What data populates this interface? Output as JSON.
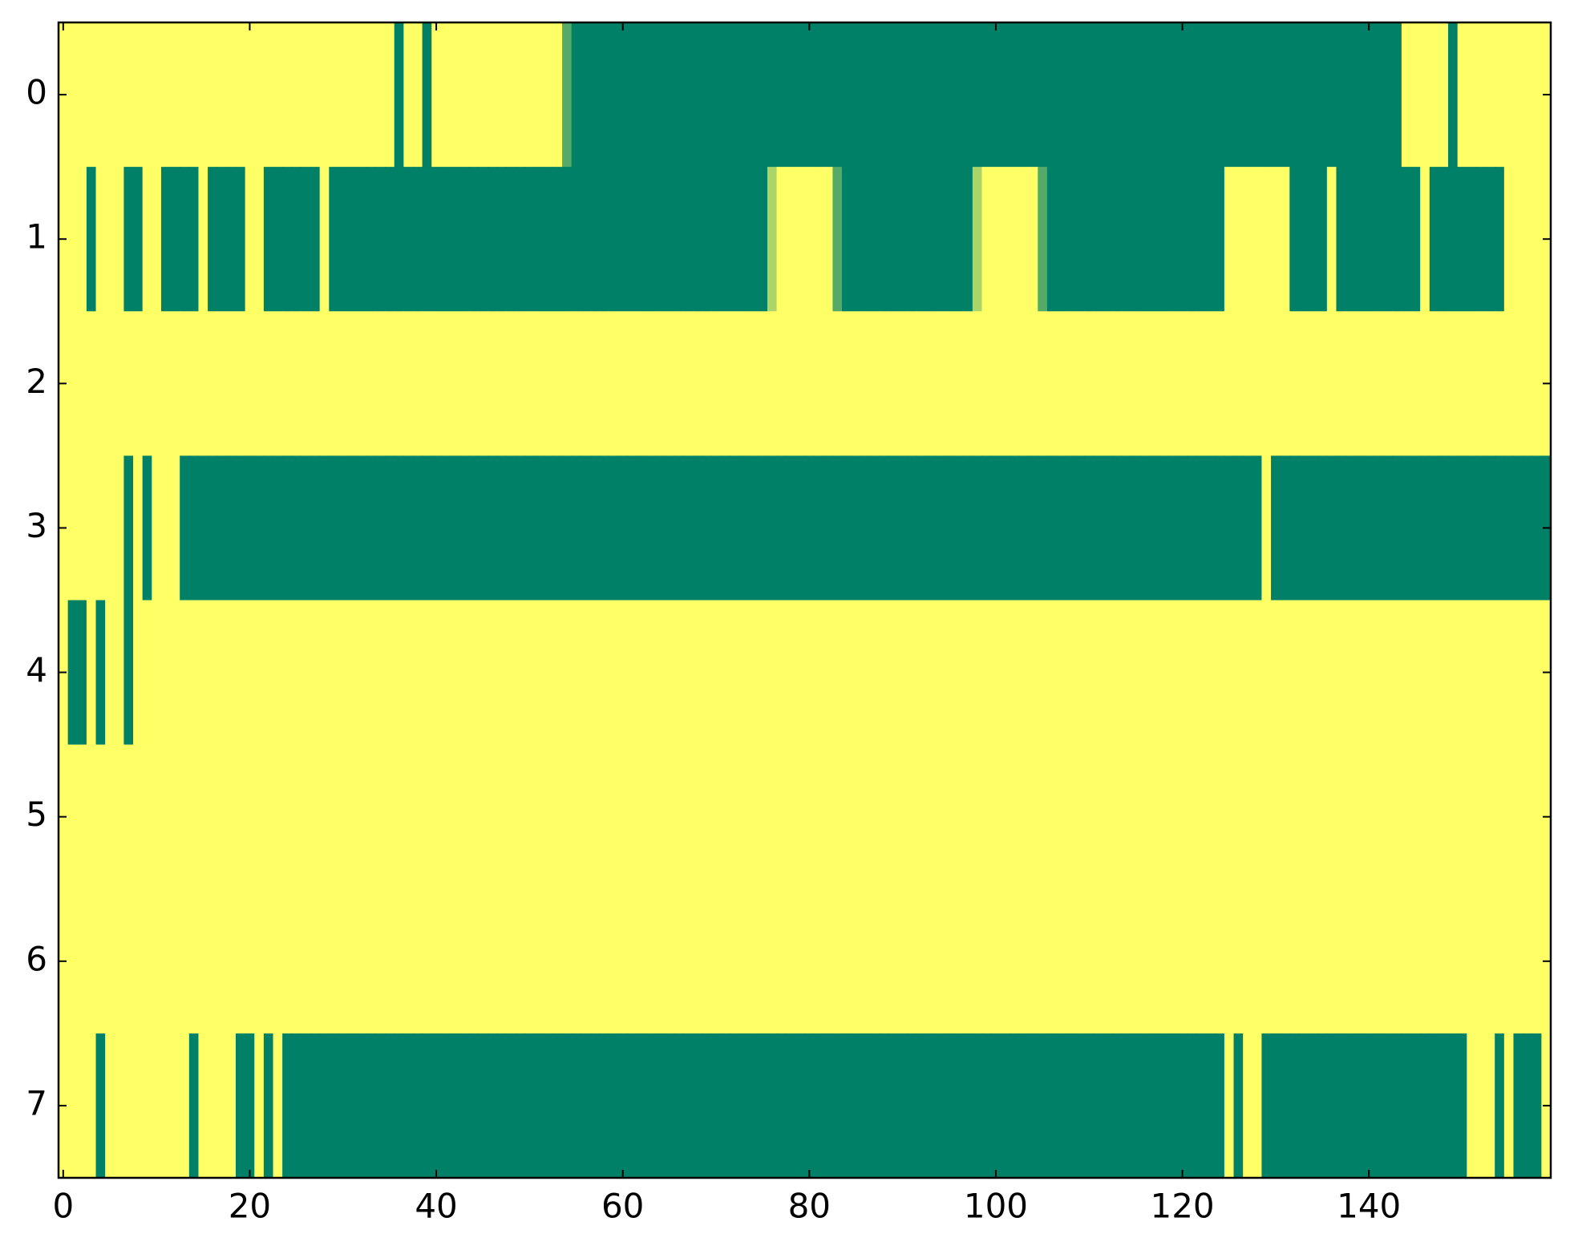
{
  "chart_data": {
    "type": "heatmap",
    "colormap": [
      "#008066",
      "#ffff66"
    ],
    "xlim": [
      -0.5,
      159.5
    ],
    "ylim": [
      7.5,
      -0.5
    ],
    "xticks": [
      0,
      20,
      40,
      60,
      80,
      100,
      120,
      140
    ],
    "yticks": [
      0,
      1,
      2,
      3,
      4,
      5,
      6,
      7
    ],
    "z": [
      [
        1,
        1,
        1,
        1,
        1,
        1,
        1,
        1,
        1,
        1,
        1,
        1,
        1,
        1,
        1,
        1,
        1,
        1,
        1,
        1,
        1,
        1,
        1,
        1,
        1,
        1,
        1,
        1,
        1,
        1,
        1,
        1,
        1,
        1,
        1,
        1,
        0,
        1,
        1,
        0,
        1,
        1,
        1,
        1,
        1,
        1,
        1,
        1,
        1,
        1,
        1,
        1,
        1,
        1,
        0.33,
        0,
        0,
        0,
        0,
        0,
        0,
        0,
        0,
        0,
        0,
        0,
        0,
        0,
        0,
        0,
        0,
        0,
        0,
        0,
        0,
        0,
        0,
        0,
        0,
        0,
        0,
        0,
        0,
        0,
        0,
        0,
        0,
        0,
        0,
        0,
        0,
        0,
        0,
        0,
        0,
        0,
        0,
        0,
        0,
        0,
        0,
        0,
        0,
        0,
        0,
        0,
        0,
        0,
        0,
        0,
        0,
        0,
        0,
        0,
        0,
        0,
        0,
        0,
        0,
        0,
        0,
        0,
        0,
        0,
        0,
        0,
        0,
        0,
        0,
        0,
        0,
        0,
        0,
        0,
        0,
        0,
        0,
        0,
        0,
        0,
        0,
        0,
        0,
        0,
        1,
        1,
        1,
        1,
        1,
        0,
        1,
        1,
        1,
        1,
        1,
        1,
        1,
        1,
        1,
        1
      ],
      [
        1,
        1,
        1,
        0,
        1,
        1,
        1,
        0,
        0,
        1,
        1,
        0,
        0,
        0,
        0,
        1,
        0,
        0,
        0,
        0,
        1,
        1,
        0,
        0,
        0,
        0,
        0,
        0,
        1,
        0,
        0,
        0,
        0,
        0,
        0,
        0,
        0,
        0,
        0,
        0,
        0,
        0,
        0,
        0,
        0,
        0,
        0,
        0,
        0,
        0,
        0,
        0,
        0,
        0,
        0,
        0,
        0,
        0,
        0,
        0,
        0,
        0,
        0,
        0,
        0,
        0,
        0,
        0,
        0,
        0,
        0,
        0,
        0,
        0,
        0,
        0,
        0.67,
        1,
        1,
        1,
        1,
        1,
        1,
        0.33,
        0,
        0,
        0,
        0,
        0,
        0,
        0,
        0,
        0,
        0,
        0,
        0,
        0,
        0,
        0.67,
        1,
        1,
        1,
        1,
        1,
        1,
        0.33,
        0,
        0,
        0,
        0,
        0,
        0,
        0,
        0,
        0,
        0,
        0,
        0,
        0,
        0,
        0,
        0,
        0,
        0,
        0,
        1,
        1,
        1,
        1,
        1,
        1,
        1,
        0,
        0,
        0,
        0,
        1,
        0,
        0,
        0,
        0,
        0,
        0,
        0,
        0,
        0,
        1,
        0,
        0,
        0,
        0,
        0,
        0,
        0,
        0,
        1,
        1,
        1,
        1,
        1
      ],
      [
        1,
        1,
        1,
        1,
        1,
        1,
        1,
        1,
        1,
        1,
        1,
        1,
        1,
        1,
        1,
        1,
        1,
        1,
        1,
        1,
        1,
        1,
        1,
        1,
        1,
        1,
        1,
        1,
        1,
        1,
        1,
        1,
        1,
        1,
        1,
        1,
        1,
        1,
        1,
        1,
        1,
        1,
        1,
        1,
        1,
        1,
        1,
        1,
        1,
        1,
        1,
        1,
        1,
        1,
        1,
        1,
        1,
        1,
        1,
        1,
        1,
        1,
        1,
        1,
        1,
        1,
        1,
        1,
        1,
        1,
        1,
        1,
        1,
        1,
        1,
        1,
        1,
        1,
        1,
        1,
        1,
        1,
        1,
        1,
        1,
        1,
        1,
        1,
        1,
        1,
        1,
        1,
        1,
        1,
        1,
        1,
        1,
        1,
        1,
        1,
        1,
        1,
        1,
        1,
        1,
        1,
        1,
        1,
        1,
        1,
        1,
        1,
        1,
        1,
        1,
        1,
        1,
        1,
        1,
        1,
        1,
        1,
        1,
        1,
        1,
        1,
        1,
        1,
        1,
        1,
        1,
        1,
        1,
        1,
        1,
        1,
        1,
        1,
        1,
        1,
        1,
        1,
        1,
        1,
        1,
        1,
        1,
        1,
        1,
        1,
        1,
        1,
        1,
        1,
        1,
        1,
        1,
        1,
        1,
        1
      ],
      [
        1,
        1,
        1,
        1,
        1,
        1,
        1,
        0,
        1,
        0,
        1,
        1,
        1,
        0,
        0,
        0,
        0,
        0,
        0,
        0,
        0,
        0,
        0,
        0,
        0,
        0,
        0,
        0,
        0,
        0,
        0,
        0,
        0,
        0,
        0,
        0,
        0,
        0,
        0,
        0,
        0,
        0,
        0,
        0,
        0,
        0,
        0,
        0,
        0,
        0,
        0,
        0,
        0,
        0,
        0,
        0,
        0,
        0,
        0,
        0,
        0,
        0,
        0,
        0,
        0,
        0,
        0,
        0,
        0,
        0,
        0,
        0,
        0,
        0,
        0,
        0,
        0,
        0,
        0,
        0,
        0,
        0,
        0,
        0,
        0,
        0,
        0,
        0,
        0,
        0,
        0,
        0,
        0,
        0,
        0,
        0,
        0,
        0,
        0,
        0,
        0,
        0,
        0,
        0,
        0,
        0,
        0,
        0,
        0,
        0,
        0,
        0,
        0,
        0,
        0,
        0,
        0,
        0,
        0,
        0,
        0,
        0,
        0,
        0,
        0,
        0,
        0,
        0,
        0,
        1,
        0,
        0,
        0,
        0,
        0,
        0,
        0,
        0,
        0,
        0,
        0,
        0,
        0,
        0,
        0,
        0,
        0,
        0,
        0,
        0,
        0,
        0,
        0,
        0,
        0,
        0,
        0,
        0,
        0,
        0
      ],
      [
        1,
        0,
        0,
        1,
        0,
        1,
        1,
        0,
        1,
        1,
        1,
        1,
        1,
        1,
        1,
        1,
        1,
        1,
        1,
        1,
        1,
        1,
        1,
        1,
        1,
        1,
        1,
        1,
        1,
        1,
        1,
        1,
        1,
        1,
        1,
        1,
        1,
        1,
        1,
        1,
        1,
        1,
        1,
        1,
        1,
        1,
        1,
        1,
        1,
        1,
        1,
        1,
        1,
        1,
        1,
        1,
        1,
        1,
        1,
        1,
        1,
        1,
        1,
        1,
        1,
        1,
        1,
        1,
        1,
        1,
        1,
        1,
        1,
        1,
        1,
        1,
        1,
        1,
        1,
        1,
        1,
        1,
        1,
        1,
        1,
        1,
        1,
        1,
        1,
        1,
        1,
        1,
        1,
        1,
        1,
        1,
        1,
        1,
        1,
        1,
        1,
        1,
        1,
        1,
        1,
        1,
        1,
        1,
        1,
        1,
        1,
        1,
        1,
        1,
        1,
        1,
        1,
        1,
        1,
        1,
        1,
        1,
        1,
        1,
        1,
        1,
        1,
        1,
        1,
        1,
        1,
        1,
        1,
        1,
        1,
        1,
        1,
        1,
        1,
        1,
        1,
        1,
        1,
        1,
        1,
        1,
        1,
        1,
        1,
        1,
        1,
        1,
        1,
        1,
        1,
        1,
        1,
        1,
        1,
        1
      ],
      [
        1,
        1,
        1,
        1,
        1,
        1,
        1,
        1,
        1,
        1,
        1,
        1,
        1,
        1,
        1,
        1,
        1,
        1,
        1,
        1,
        1,
        1,
        1,
        1,
        1,
        1,
        1,
        1,
        1,
        1,
        1,
        1,
        1,
        1,
        1,
        1,
        1,
        1,
        1,
        1,
        1,
        1,
        1,
        1,
        1,
        1,
        1,
        1,
        1,
        1,
        1,
        1,
        1,
        1,
        1,
        1,
        1,
        1,
        1,
        1,
        1,
        1,
        1,
        1,
        1,
        1,
        1,
        1,
        1,
        1,
        1,
        1,
        1,
        1,
        1,
        1,
        1,
        1,
        1,
        1,
        1,
        1,
        1,
        1,
        1,
        1,
        1,
        1,
        1,
        1,
        1,
        1,
        1,
        1,
        1,
        1,
        1,
        1,
        1,
        1,
        1,
        1,
        1,
        1,
        1,
        1,
        1,
        1,
        1,
        1,
        1,
        1,
        1,
        1,
        1,
        1,
        1,
        1,
        1,
        1,
        1,
        1,
        1,
        1,
        1,
        1,
        1,
        1,
        1,
        1,
        1,
        1,
        1,
        1,
        1,
        1,
        1,
        1,
        1,
        1,
        1,
        1,
        1,
        1,
        1,
        1,
        1,
        1,
        1,
        1,
        1,
        1,
        1,
        1,
        1,
        1,
        1,
        1,
        1,
        1
      ],
      [
        1,
        1,
        1,
        1,
        1,
        1,
        1,
        1,
        1,
        1,
        1,
        1,
        1,
        1,
        1,
        1,
        1,
        1,
        1,
        1,
        1,
        1,
        1,
        1,
        1,
        1,
        1,
        1,
        1,
        1,
        1,
        1,
        1,
        1,
        1,
        1,
        1,
        1,
        1,
        1,
        1,
        1,
        1,
        1,
        1,
        1,
        1,
        1,
        1,
        1,
        1,
        1,
        1,
        1,
        1,
        1,
        1,
        1,
        1,
        1,
        1,
        1,
        1,
        1,
        1,
        1,
        1,
        1,
        1,
        1,
        1,
        1,
        1,
        1,
        1,
        1,
        1,
        1,
        1,
        1,
        1,
        1,
        1,
        1,
        1,
        1,
        1,
        1,
        1,
        1,
        1,
        1,
        1,
        1,
        1,
        1,
        1,
        1,
        1,
        1,
        1,
        1,
        1,
        1,
        1,
        1,
        1,
        1,
        1,
        1,
        1,
        1,
        1,
        1,
        1,
        1,
        1,
        1,
        1,
        1,
        1,
        1,
        1,
        1,
        1,
        1,
        1,
        1,
        1,
        1,
        1,
        1,
        1,
        1,
        1,
        1,
        1,
        1,
        1,
        1,
        1,
        1,
        1,
        1,
        1,
        1,
        1,
        1,
        1,
        1,
        1,
        1,
        1,
        1,
        1,
        1,
        1,
        1,
        1,
        1
      ],
      [
        1,
        1,
        1,
        1,
        0,
        1,
        1,
        1,
        1,
        1,
        1,
        1,
        1,
        1,
        0,
        1,
        1,
        1,
        1,
        0,
        0,
        1,
        0,
        1,
        0,
        0,
        0,
        0,
        0,
        0,
        0,
        0,
        0,
        0,
        0,
        0,
        0,
        0,
        0,
        0,
        0,
        0,
        0,
        0,
        0,
        0,
        0,
        0,
        0,
        0,
        0,
        0,
        0,
        0,
        0,
        0,
        0,
        0,
        0,
        0,
        0,
        0,
        0,
        0,
        0,
        0,
        0,
        0,
        0,
        0,
        0,
        0,
        0,
        0,
        0,
        0,
        0,
        0,
        0,
        0,
        0,
        0,
        0,
        0,
        0,
        0,
        0,
        0,
        0,
        0,
        0,
        0,
        0,
        0,
        0,
        0,
        0,
        0,
        0,
        0,
        0,
        0,
        0,
        0,
        0,
        0,
        0,
        0,
        0,
        0,
        0,
        0,
        0,
        0,
        0,
        0,
        0,
        0,
        0,
        0,
        0,
        0,
        0,
        0,
        0,
        1,
        0,
        1,
        1,
        0,
        0,
        0,
        0,
        0,
        0,
        0,
        0,
        0,
        0,
        0,
        0,
        0,
        0,
        0,
        0,
        0,
        0,
        0,
        0,
        0,
        0,
        1,
        1,
        1,
        0,
        1,
        0,
        0,
        0,
        1
      ]
    ]
  }
}
